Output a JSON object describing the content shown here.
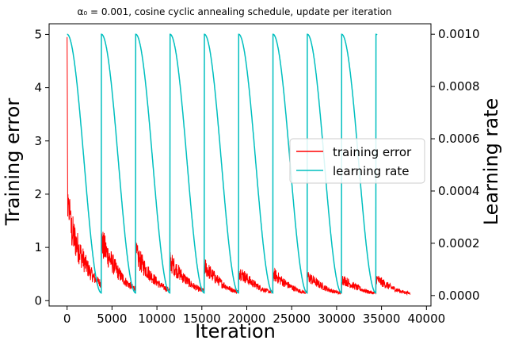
{
  "chart_data": {
    "type": "line",
    "title": "α₀ = 0.001, cosine cyclic annealing schedule, update per iteration",
    "xlabel": "Iteration",
    "ylabel_left": "Training error",
    "ylabel_right": "Learning rate",
    "xlim": [
      -2000,
      40500
    ],
    "ylim_left": [
      -0.1,
      5.2
    ],
    "ylim_right": [
      -4e-05,
      0.00104
    ],
    "x_ticks": [
      0,
      5000,
      10000,
      15000,
      20000,
      25000,
      30000,
      35000,
      40000
    ],
    "y_left_ticks": [
      0,
      1,
      2,
      3,
      4,
      5
    ],
    "y_right_ticks": [
      "0.0000",
      "0.0002",
      "0.0004",
      "0.0006",
      "0.0008",
      "0.0010"
    ],
    "legend": {
      "position": "center-right",
      "entries": [
        "training error",
        "learning rate"
      ]
    },
    "series": [
      {
        "name": "training error",
        "axis": "left",
        "color": "#ff0000",
        "total_iterations": 38200,
        "start_value": 4.95,
        "cycle_peaks": [
          1.7,
          1.2,
          0.95,
          0.8,
          0.7,
          0.6,
          0.55,
          0.5,
          0.45,
          0.45
        ],
        "cycle_troughs": [
          0.35,
          0.25,
          0.22,
          0.2,
          0.18,
          0.17,
          0.16,
          0.15,
          0.15,
          0.15
        ]
      },
      {
        "name": "learning rate",
        "axis": "right",
        "color": "#00bfbf",
        "alpha0": 0.001,
        "cycle_length": 3820,
        "num_cycles": 10,
        "min_value": 1e-05
      }
    ]
  }
}
